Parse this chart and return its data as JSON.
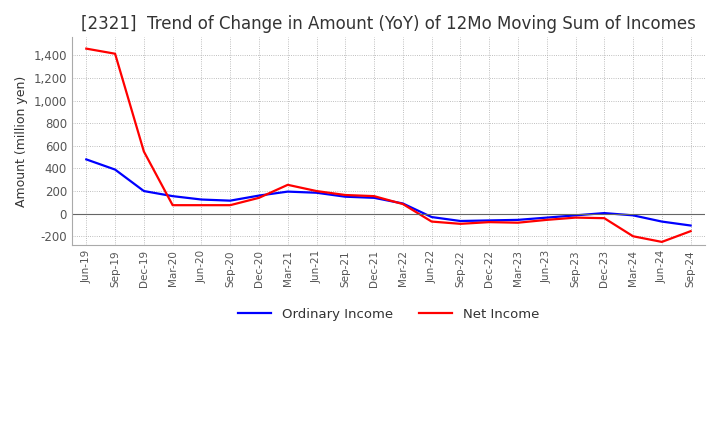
{
  "title": "[2321]  Trend of Change in Amount (YoY) of 12Mo Moving Sum of Incomes",
  "ylabel": "Amount (million yen)",
  "ylim": [
    -280,
    1560
  ],
  "yticks": [
    -200,
    0,
    200,
    400,
    600,
    800,
    1000,
    1200,
    1400
  ],
  "x_labels": [
    "Jun-19",
    "Sep-19",
    "Dec-19",
    "Mar-20",
    "Jun-20",
    "Sep-20",
    "Dec-20",
    "Mar-21",
    "Jun-21",
    "Sep-21",
    "Dec-21",
    "Mar-22",
    "Jun-22",
    "Sep-22",
    "Dec-22",
    "Mar-23",
    "Jun-23",
    "Sep-23",
    "Dec-23",
    "Mar-24",
    "Jun-24",
    "Sep-24"
  ],
  "ordinary_income": [
    480,
    390,
    200,
    155,
    125,
    115,
    160,
    195,
    185,
    150,
    140,
    90,
    -30,
    -65,
    -60,
    -55,
    -35,
    -15,
    5,
    -15,
    -70,
    -105
  ],
  "net_income": [
    1460,
    1415,
    550,
    75,
    75,
    75,
    140,
    255,
    200,
    165,
    155,
    85,
    -70,
    -90,
    -75,
    -80,
    -55,
    -35,
    -40,
    -200,
    -250,
    -155
  ],
  "ordinary_color": "#0000ff",
  "net_color": "#ff0000",
  "grid_color": "#aaaaaa",
  "background_color": "#ffffff",
  "title_fontsize": 12,
  "legend_labels": [
    "Ordinary Income",
    "Net Income"
  ],
  "tick_color": "#555555"
}
